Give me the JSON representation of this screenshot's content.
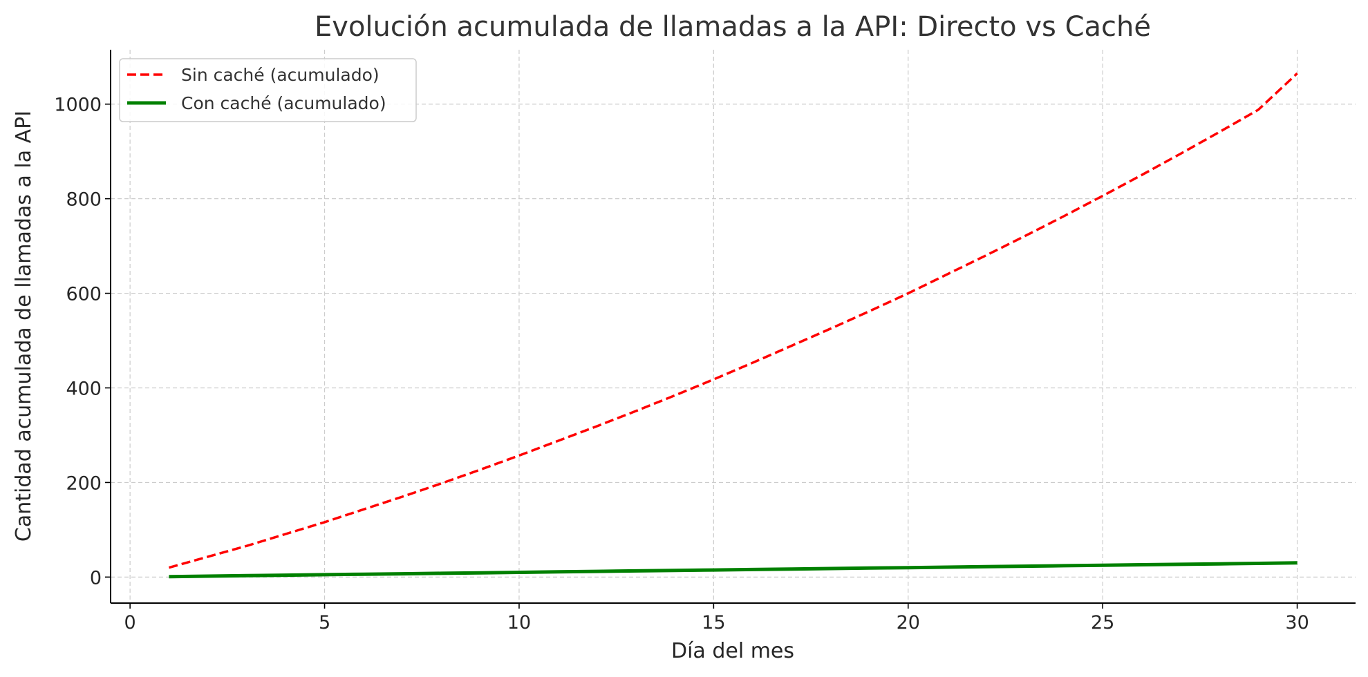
{
  "chart_data": {
    "type": "line",
    "title": "Evolución acumulada de llamadas a la API: Directo vs Caché",
    "xlabel": "Día del mes",
    "ylabel": "Cantidad acumulada de llamadas a la API",
    "xlim": [
      -0.5,
      31.5
    ],
    "ylim": [
      -55,
      1115
    ],
    "xticks": [
      0,
      5,
      10,
      15,
      20,
      25,
      30
    ],
    "yticks": [
      0,
      200,
      400,
      600,
      800,
      1000
    ],
    "grid": true,
    "legend_position": "top-left",
    "x": [
      1,
      2,
      3,
      4,
      5,
      6,
      7,
      8,
      9,
      10,
      11,
      12,
      13,
      14,
      15,
      16,
      17,
      18,
      19,
      20,
      21,
      22,
      23,
      24,
      25,
      26,
      27,
      28,
      29,
      30
    ],
    "series": [
      {
        "name": "Sin caché (acumulado)",
        "color": "#ff0000",
        "style": "dashed",
        "values": [
          20,
          43,
          66,
          91,
          116,
          143,
          170,
          198,
          227,
          257,
          288,
          319,
          351,
          384,
          418,
          453,
          489,
          525,
          562,
          600,
          640,
          680,
          721,
          763,
          806,
          850,
          895,
          941,
          988,
          1065
        ]
      },
      {
        "name": "Con caché (acumulado)",
        "color": "#008000",
        "style": "solid",
        "values": [
          1,
          2,
          3,
          4,
          5,
          6,
          7,
          8,
          9,
          10,
          11,
          12,
          13,
          14,
          15,
          16,
          17,
          18,
          19,
          20,
          21,
          22,
          23,
          24,
          25,
          26,
          27,
          28,
          29,
          30
        ]
      }
    ]
  }
}
